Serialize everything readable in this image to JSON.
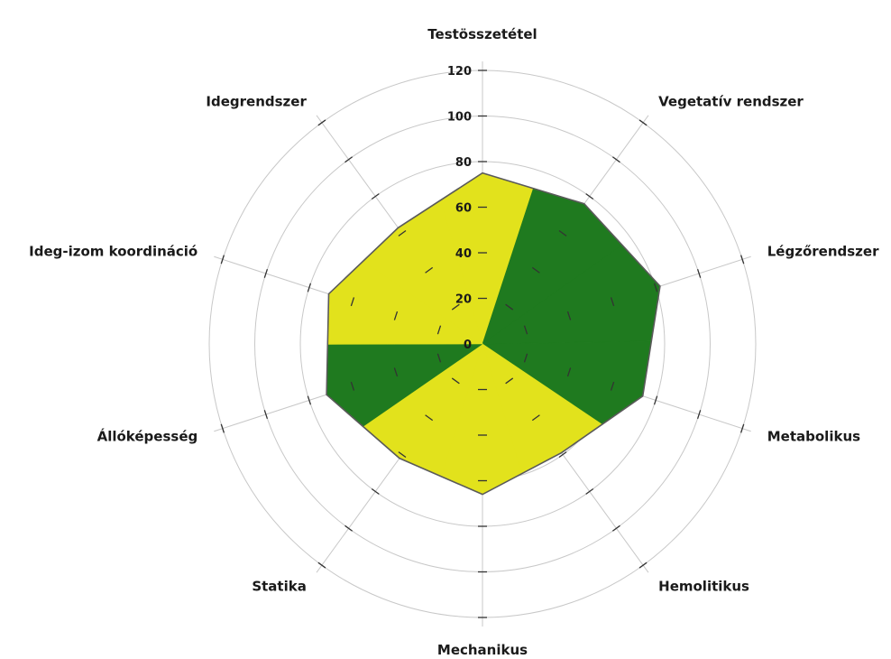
{
  "chart_data": {
    "type": "radar",
    "title": "",
    "categories": [
      "Testösszetétel",
      "Vegetatív rendszer",
      "Légzőrendszer",
      "Metabolikus",
      "Hemolitikus",
      "Mechanikus",
      "Statika",
      "Állóképesség",
      "Ideg-izom koordináció",
      "Idegrendszer"
    ],
    "values": [
      75,
      76,
      82,
      74,
      59,
      66,
      62,
      72,
      71,
      63
    ],
    "segment_colors": [
      "yellow",
      "green",
      "green",
      "green",
      "yellow",
      "yellow",
      "yellow",
      "green",
      "yellow",
      "yellow"
    ],
    "colors": {
      "yellow": "#e2e21c",
      "green": "#1f7a1f",
      "outline": "#5a5a5a"
    },
    "rlim": [
      0,
      120
    ],
    "rticks": [
      0,
      20,
      40,
      60,
      80,
      100,
      120
    ],
    "tick_labels": [
      "0",
      "20",
      "40",
      "60",
      "80",
      "100",
      "120"
    ],
    "grid": true,
    "legend": "none"
  }
}
